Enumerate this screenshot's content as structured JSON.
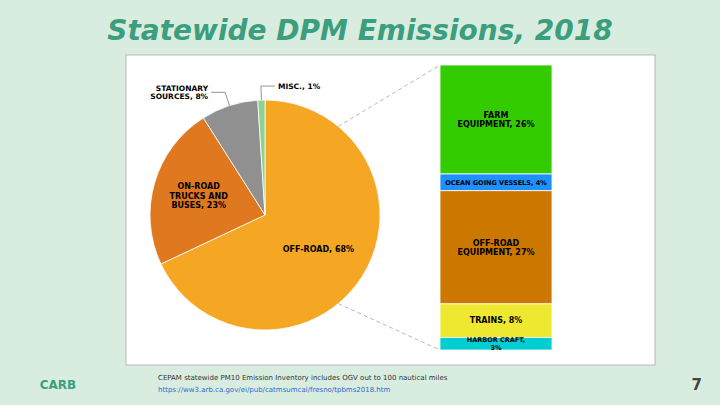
{
  "chart_data": [
    {
      "type": "pie",
      "title": "Statewide DPM Emissions, 2018",
      "categories": [
        "OFF-ROAD, 68%",
        "ON-ROAD\nTRUCKS AND\nBUSES, 23%",
        "STATIONARY\nSOURCES, 8%",
        "MISC., 1%"
      ],
      "values": [
        68,
        23,
        8,
        1
      ],
      "colors": [
        "#F5A623",
        "#E07820",
        "#909090",
        "#90D090"
      ],
      "annotations": [
        "CEPAM statewide PM10 Emission Inventory includes OGV out to 100 nautical miles",
        "https://ww3.arb.ca.gov/ei/pub/catmsumcal/fresno/tpbms2018.htm",
        "CARB",
        "7"
      ]
    },
    {
      "type": "bar",
      "stacked": true,
      "categories": [
        "FARM\nEQUIPMENT, 26%",
        "OCEAN GOING VESSELS, 4%",
        "OFF-ROAD\nEQUIPMENT, 27%",
        "TRAINS, 8%",
        "HARBOR CRAFT,\n3%"
      ],
      "values": [
        26,
        4,
        27,
        8,
        3
      ],
      "colors": [
        "#33CC00",
        "#1E90FF",
        "#CC7700",
        "#EEE830",
        "#00CED1"
      ],
      "ylim": [
        0,
        68
      ],
      "tick_labels": false
    }
  ]
}
